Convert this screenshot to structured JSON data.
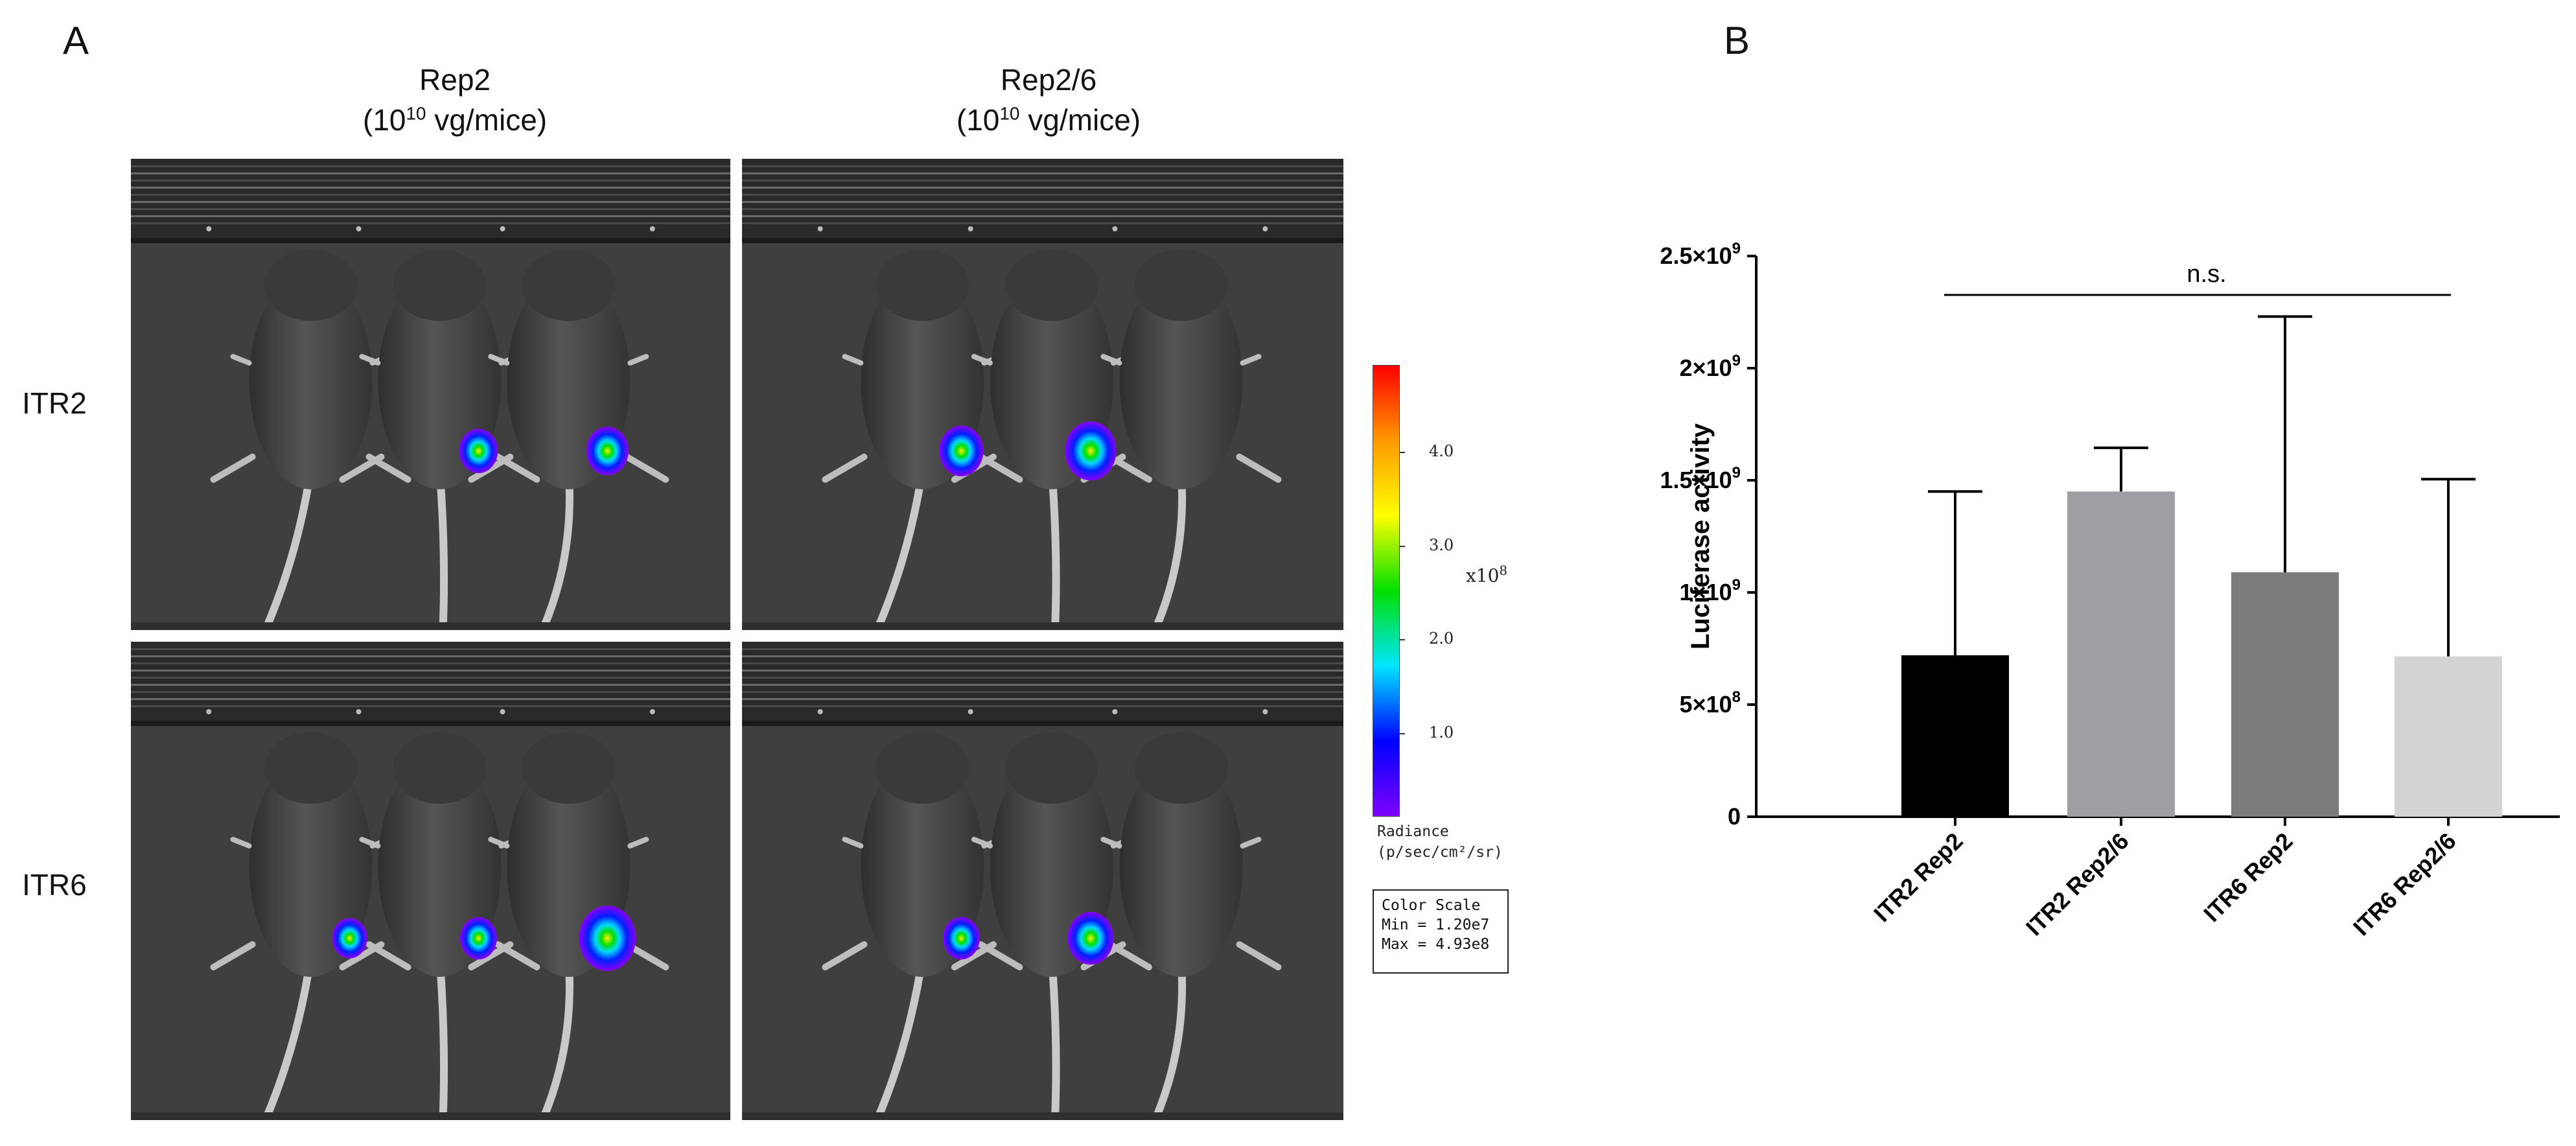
{
  "panelA": {
    "letter": "A",
    "columns": [
      {
        "line1": "Rep2",
        "pre": "(10",
        "exp": "10",
        "post": " vg/mice)"
      },
      {
        "line1": "Rep2/6",
        "pre": "(10",
        "exp": "10",
        "post": " vg/mice)"
      }
    ],
    "rows": [
      "ITR2",
      "ITR6"
    ],
    "colorbar": {
      "ticks": [
        "1.0",
        "2.0",
        "3.0",
        "4.0"
      ],
      "tick_values": [
        1.0,
        2.0,
        3.0,
        4.0
      ],
      "range": [
        0.12,
        4.93
      ],
      "multiplier": "x10",
      "multiplier_exp": "8",
      "radiance_label": "Radiance",
      "radiance_units": "(p/sec/cm²/sr)",
      "colors": [
        "#7f00ff",
        "#0000ff",
        "#00e5ff",
        "#00e000",
        "#ffff00",
        "#ff9900",
        "#ff0000"
      ]
    },
    "color_scale": {
      "title": "Color Scale",
      "min": "Min = 1.20e7",
      "max": "Max = 4.93e8"
    },
    "images": [
      {
        "row": "ITR2",
        "col": "Rep2",
        "signals": [
          {
            "mouse": 2,
            "intensity": 0.35
          },
          {
            "mouse": 3,
            "intensity": 0.45
          }
        ]
      },
      {
        "row": "ITR2",
        "col": "Rep2/6",
        "signals": [
          {
            "mouse": 1,
            "intensity": 0.5
          },
          {
            "mouse": 2,
            "intensity": 0.7
          }
        ]
      },
      {
        "row": "ITR6",
        "col": "Rep2",
        "signals": [
          {
            "mouse": 1,
            "intensity": 0.25
          },
          {
            "mouse": 2,
            "intensity": 0.3
          },
          {
            "mouse": 3,
            "intensity": 0.85
          }
        ]
      },
      {
        "row": "ITR6",
        "col": "Rep2/6",
        "signals": [
          {
            "mouse": 1,
            "intensity": 0.3
          },
          {
            "mouse": 2,
            "intensity": 0.55
          }
        ]
      }
    ]
  },
  "panelB": {
    "letter": "B",
    "sig_label": "n.s."
  },
  "chart_data": {
    "type": "bar",
    "categories": [
      "ITR2 Rep2",
      "ITR2 Rep2/6",
      "ITR6 Rep2",
      "ITR6 Rep2/6"
    ],
    "values": [
      720000000,
      1450000000,
      1090000000,
      715000000
    ],
    "errors_upper": [
      1450000000,
      1645000000,
      2230000000,
      1505000000
    ],
    "colors": [
      "#000000",
      "#a09ea3",
      "#7b7b7b",
      "#d3d3d3"
    ],
    "ylabel": "Luciferase activity",
    "ylim": [
      0,
      2500000000
    ],
    "yticks": [
      {
        "value": 0,
        "label": "0",
        "exp": ""
      },
      {
        "value": 500000000,
        "label": "5×10",
        "exp": "8"
      },
      {
        "value": 1000000000,
        "label": "1×10",
        "exp": "9"
      },
      {
        "value": 1500000000,
        "label": "1.5×10",
        "exp": "9"
      },
      {
        "value": 2000000000,
        "label": "2×10",
        "exp": "9"
      },
      {
        "value": 2500000000,
        "label": "2.5×10",
        "exp": "9"
      }
    ],
    "grid": false,
    "legend": "none"
  }
}
